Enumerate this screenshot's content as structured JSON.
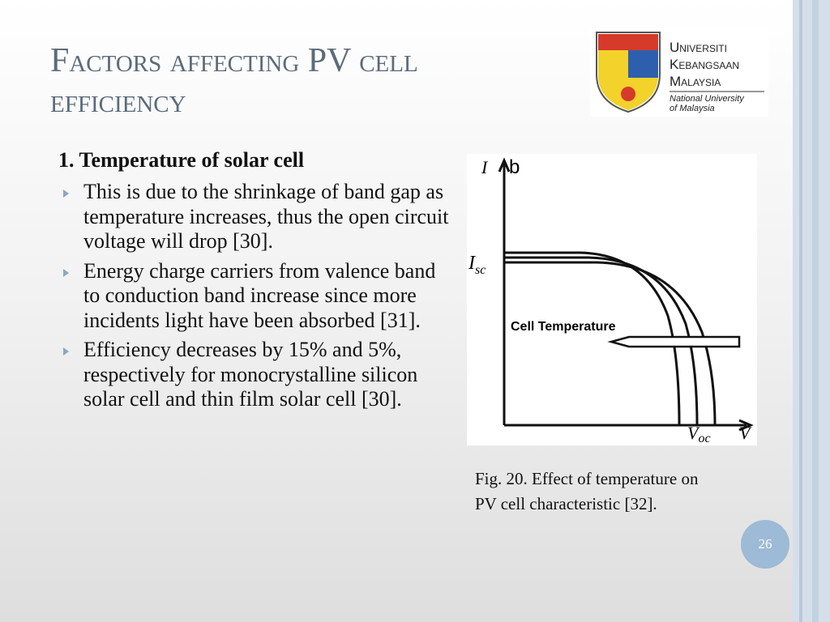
{
  "slide": {
    "title": "Factors affecting PV cell efficiency",
    "logo": {
      "name_lines": [
        "Universiti",
        "Kebangsaan",
        "Malaysia"
      ],
      "subtitle_lines": [
        "National University",
        "of Malaysia"
      ]
    },
    "heading": "1. Temperature of solar cell",
    "bullets": [
      "This is due to the shrinkage of band gap as temperature increases, thus the open circuit voltage will drop [30].",
      "Energy charge carriers from valence band to conduction band increase since more incidents light have been absorbed [31].",
      "Efficiency decreases by 15% and 5%, respectively for monocrystalline silicon solar cell and thin film solar cell [30]."
    ],
    "figure": {
      "y_axis": "I",
      "corner": "b",
      "isc_symbol": "I",
      "isc_sub": "sc",
      "arrow_label": "Cell Temperature",
      "voc_symbol": "V",
      "voc_sub": "oc",
      "x_axis": "V"
    },
    "caption_lines": [
      "Fig. 20. Effect of temperature on",
      "PV cell characteristic [32]."
    ],
    "page_number": "26"
  }
}
